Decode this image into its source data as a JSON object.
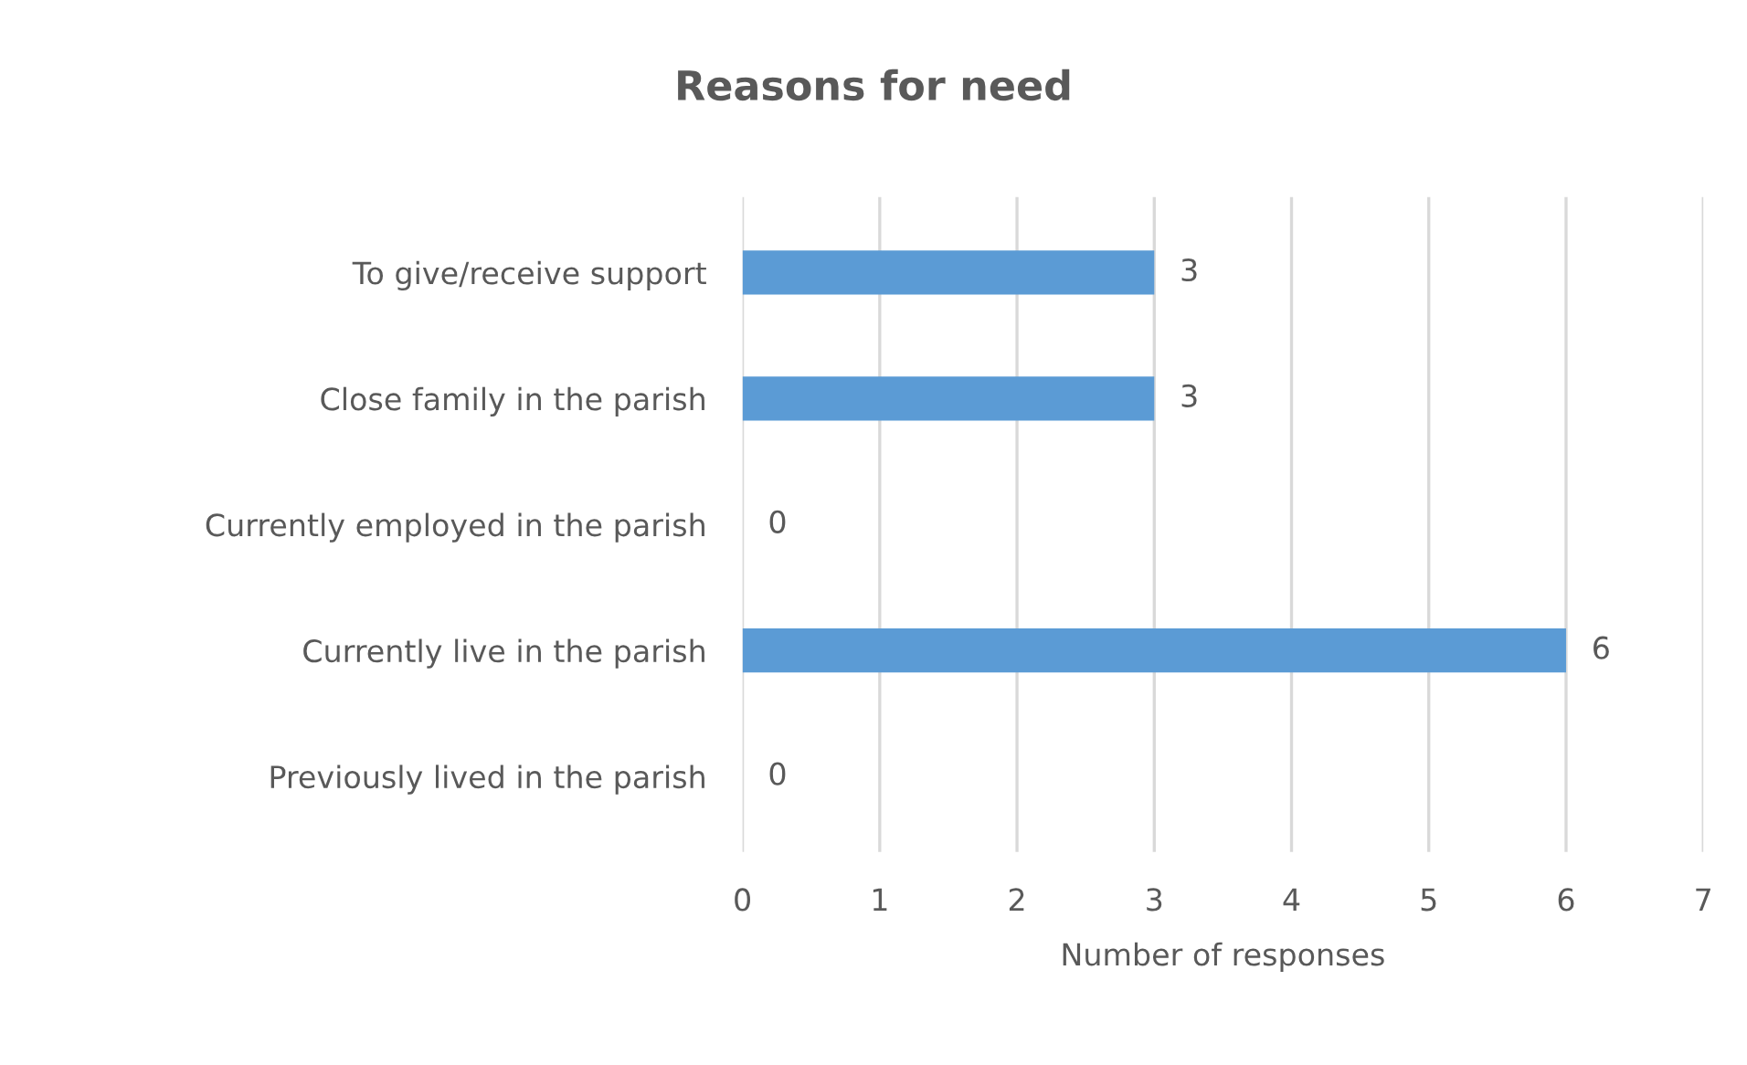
{
  "chart_data": {
    "type": "bar",
    "orientation": "horizontal",
    "title": "Reasons for need",
    "xlabel": "Number of responses",
    "categories": [
      "To give/receive support",
      "Close family in the parish",
      "Currently employed in the parish",
      "Currently live in the parish",
      "Previously lived in the parish"
    ],
    "values": [
      3,
      3,
      0,
      6,
      0
    ],
    "color": "#5b9bd5",
    "xlim": [
      0,
      7
    ],
    "xticks": [
      0,
      1,
      2,
      3,
      4,
      5,
      6,
      7
    ],
    "grid": "x",
    "data_labels": true
  }
}
